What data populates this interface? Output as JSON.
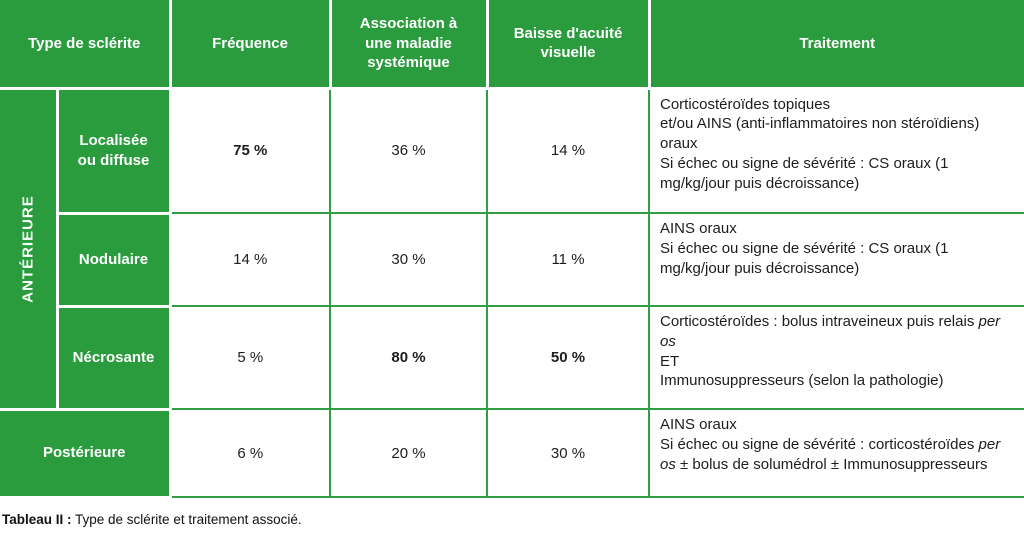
{
  "colors": {
    "green": "#2a9c3e",
    "grid": "#2f9e44",
    "text": "#1d1d1b"
  },
  "table": {
    "headers": {
      "type": "Type de sclérite",
      "frequency": "Fréquence",
      "association": "Association à\nune maladie\nsystémique",
      "acuity": "Baisse d'acuité\nvisuelle",
      "treatment": "Traitement"
    },
    "anterior_label": "ANTÉRIEURE",
    "rows": [
      {
        "label": "Localisée\nou diffuse",
        "frequency": {
          "text": "75 %",
          "bold": true
        },
        "association": {
          "text": "36 %",
          "bold": false
        },
        "acuity": {
          "text": "14 %",
          "bold": false
        },
        "treatment": [
          {
            "t": "Corticostéroïdes topiques\net/ou AINS (anti-inflammatoires non stéroïdiens) oraux\nSi échec ou signe de sévérité : CS oraux (1 mg/kg/jour puis décroissance)",
            "i": false
          }
        ]
      },
      {
        "label": "Nodulaire",
        "frequency": {
          "text": "14 %",
          "bold": false
        },
        "association": {
          "text": "30 %",
          "bold": false
        },
        "acuity": {
          "text": "11 %",
          "bold": false
        },
        "treatment": [
          {
            "t": "AINS oraux\nSi échec ou signe de sévérité : CS oraux (1 mg/kg/jour puis décroissance)",
            "i": false
          }
        ]
      },
      {
        "label": "Nécrosante",
        "frequency": {
          "text": "5 %",
          "bold": false
        },
        "association": {
          "text": "80 %",
          "bold": true
        },
        "acuity": {
          "text": "50 %",
          "bold": true
        },
        "treatment": [
          {
            "t": "Corticostéroïdes : bolus intraveineux puis relais ",
            "i": false
          },
          {
            "t": "per os",
            "i": true
          },
          {
            "t": "\nET\nImmunosuppresseurs (selon la pathologie)",
            "i": false
          }
        ]
      },
      {
        "label": "Postérieure",
        "frequency": {
          "text": "6 %",
          "bold": false
        },
        "association": {
          "text": "20 %",
          "bold": false
        },
        "acuity": {
          "text": "30 %",
          "bold": false
        },
        "treatment": [
          {
            "t": "AINS oraux\nSi échec ou signe de sévérité : corticostéroïdes ",
            "i": false
          },
          {
            "t": "per os",
            "i": true
          },
          {
            "t": " ± bolus de solumédrol ± Immunosuppresseurs",
            "i": false
          }
        ]
      }
    ]
  },
  "caption": {
    "label": "Tableau II :",
    "text": " Type de sclérite et traitement associé."
  }
}
